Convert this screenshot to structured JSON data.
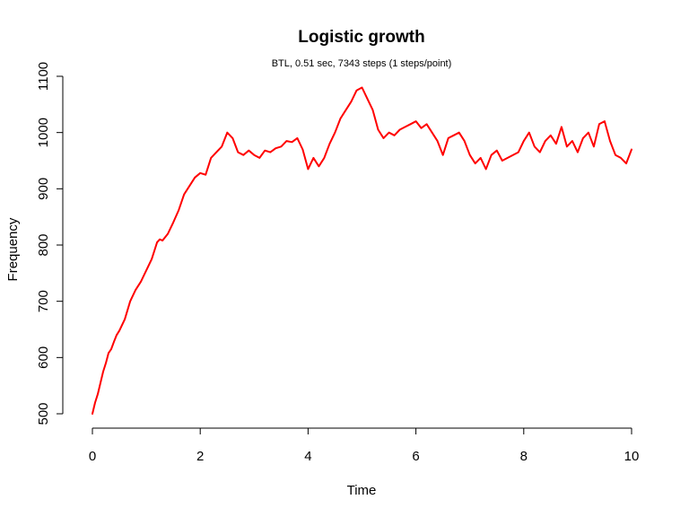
{
  "chart_data": {
    "type": "line",
    "title": "Logistic growth",
    "subtitle": "BTL, 0.51 sec, 7343 steps (1 steps/point)",
    "xlabel": "Time",
    "ylabel": "Frequency",
    "xlim": [
      0,
      10
    ],
    "ylim": [
      500,
      1100
    ],
    "xticks": [
      0,
      2,
      4,
      6,
      8,
      10
    ],
    "yticks": [
      500,
      600,
      700,
      800,
      900,
      1000,
      1100
    ],
    "grid": false,
    "series": [
      {
        "color": "#ff0000",
        "x": [
          0.0,
          0.05,
          0.1,
          0.15,
          0.2,
          0.25,
          0.3,
          0.35,
          0.4,
          0.45,
          0.5,
          0.6,
          0.7,
          0.8,
          0.9,
          1.0,
          1.1,
          1.2,
          1.25,
          1.3,
          1.4,
          1.5,
          1.6,
          1.7,
          1.8,
          1.9,
          2.0,
          2.1,
          2.2,
          2.3,
          2.4,
          2.5,
          2.6,
          2.7,
          2.8,
          2.9,
          3.0,
          3.1,
          3.2,
          3.3,
          3.4,
          3.5,
          3.6,
          3.7,
          3.8,
          3.9,
          4.0,
          4.1,
          4.2,
          4.3,
          4.4,
          4.5,
          4.6,
          4.7,
          4.8,
          4.9,
          5.0,
          5.1,
          5.2,
          5.3,
          5.4,
          5.5,
          5.6,
          5.7,
          5.8,
          5.9,
          6.0,
          6.1,
          6.2,
          6.3,
          6.4,
          6.5,
          6.6,
          6.7,
          6.8,
          6.9,
          7.0,
          7.1,
          7.2,
          7.3,
          7.4,
          7.5,
          7.6,
          7.7,
          7.8,
          7.9,
          8.0,
          8.1,
          8.2,
          8.3,
          8.4,
          8.5,
          8.6,
          8.7,
          8.8,
          8.9,
          9.0,
          9.1,
          9.2,
          9.3,
          9.4,
          9.5,
          9.6,
          9.7,
          9.8,
          9.9,
          10.0
        ],
        "y": [
          500,
          520,
          535,
          555,
          575,
          590,
          608,
          615,
          628,
          640,
          648,
          668,
          700,
          720,
          735,
          755,
          775,
          805,
          810,
          808,
          820,
          840,
          862,
          890,
          905,
          920,
          928,
          925,
          955,
          965,
          975,
          1000,
          990,
          965,
          960,
          968,
          960,
          955,
          968,
          965,
          972,
          975,
          985,
          983,
          990,
          970,
          935,
          955,
          940,
          955,
          980,
          1000,
          1025,
          1040,
          1055,
          1075,
          1080,
          1060,
          1040,
          1005,
          990,
          1000,
          995,
          1005,
          1010,
          1015,
          1020,
          1008,
          1015,
          1000,
          985,
          960,
          990,
          995,
          1000,
          985,
          960,
          945,
          955,
          935,
          960,
          968,
          950,
          955,
          960,
          965,
          985,
          1000,
          975,
          965,
          985,
          995,
          980,
          1010,
          975,
          985,
          965,
          990,
          1000,
          975,
          1015,
          1020,
          985,
          960,
          955,
          945,
          970
        ]
      }
    ]
  }
}
